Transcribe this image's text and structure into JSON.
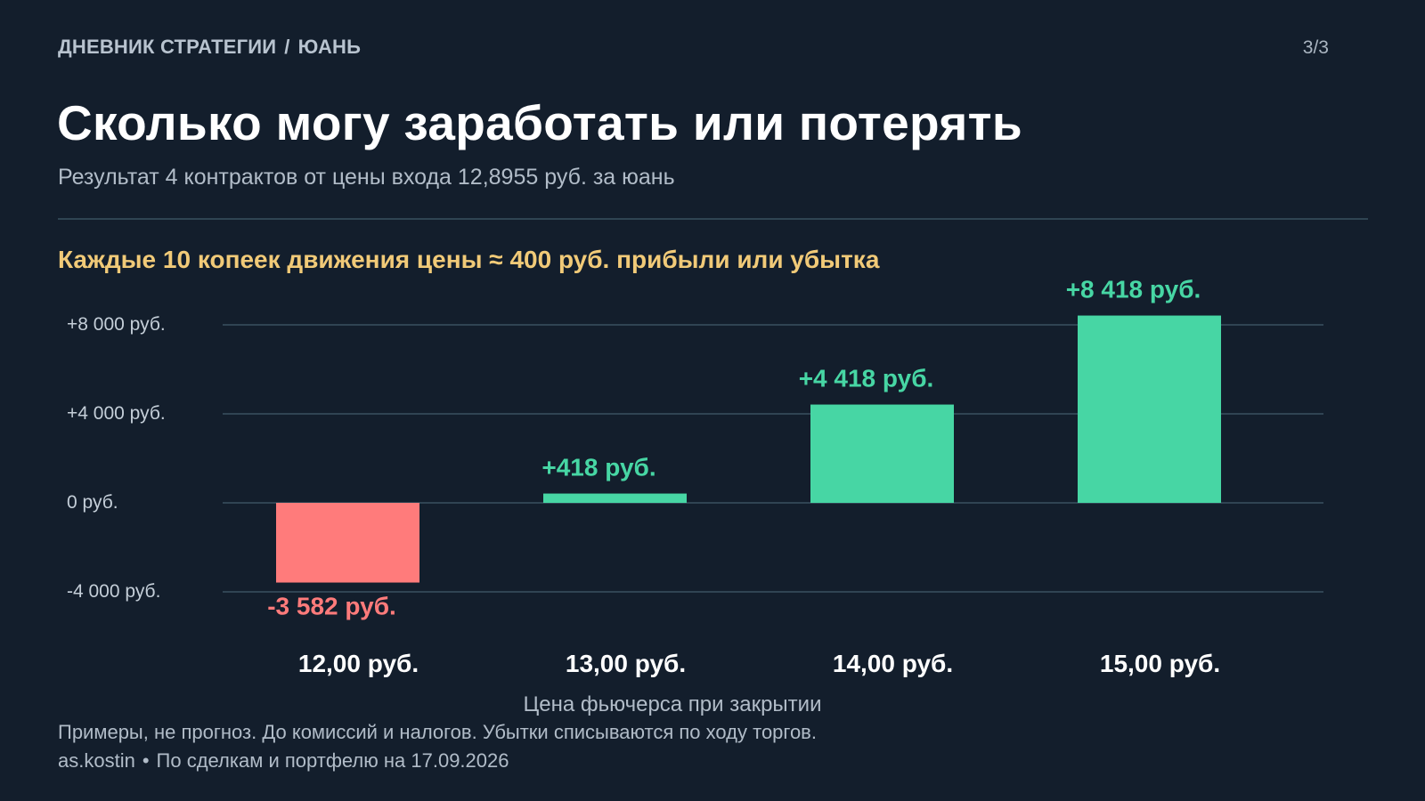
{
  "header": {
    "breadcrumb_main": "ДНЕВНИК СТРАТЕГИИ",
    "breadcrumb_separator": "/",
    "breadcrumb_sub": "ЮАНЬ",
    "page_indicator": "3/3"
  },
  "title": "Сколько могу заработать или потерять",
  "subtitle": "Результат 4 контрактов от цены входа 12,8955 руб. за юань",
  "highlight": "Каждые 10 копеек движения цены ≈ 400 руб. прибыли или убытка",
  "chart_data": {
    "type": "bar",
    "categories": [
      "12,00 руб.",
      "13,00 руб.",
      "14,00 руб.",
      "15,00 руб."
    ],
    "values": [
      -3582,
      418,
      4418,
      8418
    ],
    "value_labels": [
      "-3 582 руб.",
      "+418 руб.",
      "+4 418 руб.",
      "+8 418 руб."
    ],
    "yticks": [
      8000,
      4000,
      0,
      -4000
    ],
    "ytick_labels": [
      "+8 000 руб.",
      "+4 000 руб.",
      "0 руб.",
      "-4 000 руб."
    ],
    "ylim": [
      -4000,
      8000
    ],
    "xlabel": "Цена фьючерса при закрытии",
    "ylabel": "",
    "grid": true,
    "colors": {
      "positive": "#47d6a4",
      "negative": "#ff7b7b",
      "grid": "#3a5060",
      "category_text": "#ffffff",
      "tick_text": "#c4ced8"
    }
  },
  "disclaimer": "Примеры, не прогноз. До комиссий и налогов. Убытки списываются по ходу торгов.",
  "footer": {
    "author": "as.kostin",
    "separator": "•",
    "note": "По сделкам и портфелю на 17.09.2026"
  }
}
